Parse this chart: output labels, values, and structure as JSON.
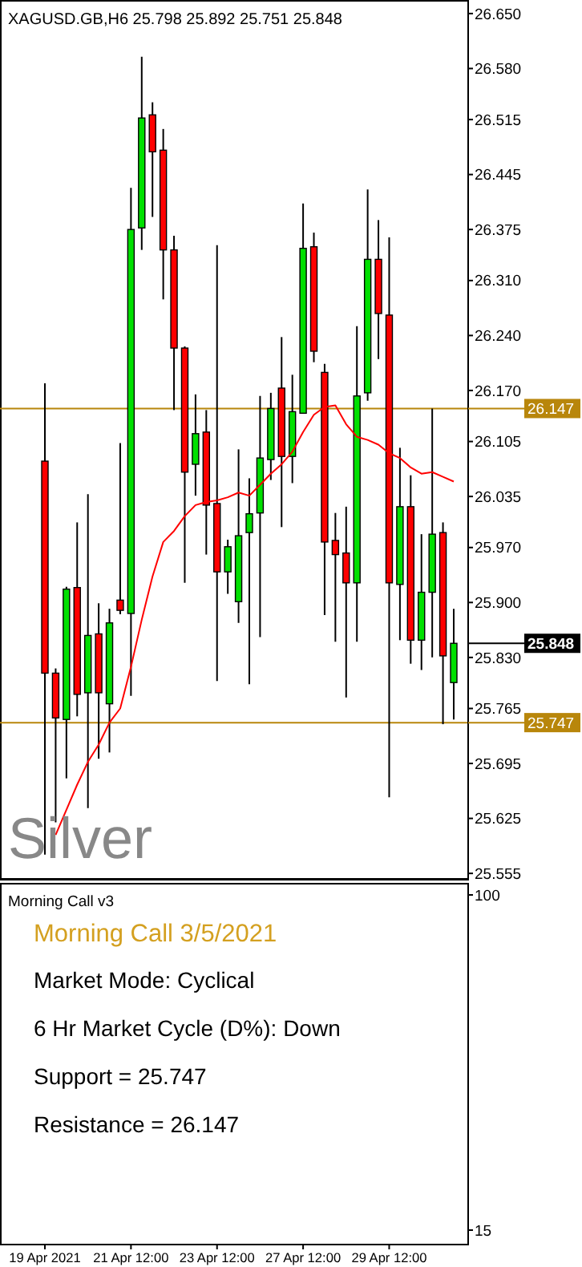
{
  "chart_data": [
    {
      "type": "candlestick",
      "title": "XAGUSD.GB,H6  25.798 25.892 25.751 25.848",
      "annotations": [
        "Silver",
        "25.848"
      ],
      "categories": [
        null,
        null,
        null,
        null,
        null,
        null,
        null,
        null,
        null,
        null,
        null,
        null,
        null,
        null,
        null,
        null,
        null,
        null,
        null,
        null,
        null,
        null,
        null,
        null,
        null,
        null,
        null,
        null,
        null,
        null,
        null,
        null,
        null,
        null,
        null,
        null,
        null,
        null,
        null
      ],
      "tick_labels": "y",
      "grid": false,
      "ylim": [
        25.548,
        26.655
      ],
      "yticks": [
        {
          "value": 26.65,
          "label": "26.650"
        },
        {
          "value": 26.58,
          "label": "26.580"
        },
        {
          "value": 26.515,
          "label": "26.515"
        },
        {
          "value": 26.445,
          "label": "26.445"
        },
        {
          "value": 26.375,
          "label": "26.375"
        },
        {
          "value": 26.31,
          "label": "26.310"
        },
        {
          "value": 26.24,
          "label": "26.240"
        },
        {
          "value": 26.17,
          "label": "26.170"
        },
        {
          "value": 26.105,
          "label": "26.105"
        },
        {
          "value": 26.035,
          "label": "26.035"
        },
        {
          "value": 25.97,
          "label": "25.970"
        },
        {
          "value": 25.9,
          "label": "25.900"
        },
        {
          "value": 25.83,
          "label": "25.830"
        },
        {
          "value": 25.765,
          "label": "25.765"
        },
        {
          "value": 25.695,
          "label": "25.695"
        },
        {
          "value": 25.625,
          "label": "25.625"
        },
        {
          "value": 25.555,
          "label": "25.555"
        }
      ],
      "ref_lines": [
        {
          "axis": "y",
          "value": 26.147,
          "label": "26.147",
          "color": "#b8860b"
        },
        {
          "axis": "y",
          "value": 25.747,
          "label": "25.747",
          "color": "#b8860b"
        }
      ],
      "ohlc": [
        [
          26.08,
          26.179,
          25.579,
          25.81
        ],
        [
          25.81,
          25.816,
          25.62,
          25.753
        ],
        [
          25.751,
          25.92,
          25.676,
          25.917
        ],
        [
          25.919,
          26.002,
          25.755,
          25.783
        ],
        [
          25.785,
          26.038,
          25.638,
          25.858
        ],
        [
          25.86,
          25.899,
          25.701,
          25.785
        ],
        [
          25.771,
          25.892,
          25.709,
          25.874
        ],
        [
          25.903,
          26.103,
          25.885,
          25.89
        ],
        [
          25.886,
          26.428,
          25.781,
          26.375
        ],
        [
          26.377,
          26.595,
          26.349,
          26.517
        ],
        [
          26.521,
          26.537,
          26.391,
          26.474
        ],
        [
          26.476,
          26.503,
          26.286,
          26.349
        ],
        [
          26.349,
          26.367,
          26.145,
          26.224
        ],
        [
          26.224,
          26.226,
          25.925,
          26.066
        ],
        [
          26.076,
          26.165,
          26.036,
          26.115
        ],
        [
          26.117,
          26.145,
          25.961,
          26.024
        ],
        [
          26.026,
          26.355,
          25.8,
          25.939
        ],
        [
          25.939,
          25.98,
          25.911,
          25.971
        ],
        [
          25.901,
          26.095,
          25.874,
          25.985
        ],
        [
          25.989,
          26.058,
          25.796,
          26.013
        ],
        [
          26.014,
          26.163,
          25.856,
          26.084
        ],
        [
          26.082,
          26.167,
          26.056,
          26.147
        ],
        [
          26.173,
          26.238,
          25.996,
          26.086
        ],
        [
          26.086,
          26.19,
          26.052,
          26.143
        ],
        [
          26.141,
          26.408,
          26.141,
          26.351
        ],
        [
          26.353,
          26.371,
          26.206,
          26.22
        ],
        [
          26.193,
          26.204,
          25.884,
          25.977
        ],
        [
          25.979,
          26.014,
          25.85,
          25.961
        ],
        [
          25.963,
          26.022,
          25.779,
          25.925
        ],
        [
          25.925,
          26.252,
          25.85,
          26.163
        ],
        [
          26.167,
          26.426,
          26.157,
          26.337
        ],
        [
          26.337,
          26.387,
          26.21,
          26.268
        ],
        [
          26.266,
          26.365,
          25.652,
          25.925
        ],
        [
          25.923,
          26.097,
          25.852,
          26.022
        ],
        [
          26.022,
          26.062,
          25.822,
          25.852
        ],
        [
          25.852,
          25.987,
          25.814,
          25.913
        ],
        [
          25.913,
          26.147,
          25.83,
          25.987
        ],
        [
          25.989,
          26.002,
          25.745,
          25.832
        ],
        [
          25.798,
          25.892,
          25.751,
          25.848
        ]
      ],
      "colors": [
        "#ff0000",
        "#ff0000",
        "#00e000",
        "#ff0000",
        "#00e000",
        "#ff0000",
        "#00e000",
        "#ff0000",
        "#00e000",
        "#00e000",
        "#ff0000",
        "#ff0000",
        "#ff0000",
        "#ff0000",
        "#00e000",
        "#ff0000",
        "#ff0000",
        "#00e000",
        "#00e000",
        "#00e000",
        "#00e000",
        "#00e000",
        "#ff0000",
        "#00e000",
        "#00e000",
        "#ff0000",
        "#ff0000",
        "#ff0000",
        "#ff0000",
        "#00e000",
        "#00e000",
        "#ff0000",
        "#ff0000",
        "#00e000",
        "#ff0000",
        "#00e000",
        "#00e000",
        "#ff0000",
        "#00e000"
      ],
      "series": [
        {
          "type": "line",
          "color": "#ff0000",
          "values": [
            null,
            25.604,
            25.636,
            25.668,
            25.697,
            25.719,
            25.747,
            25.765,
            25.818,
            25.878,
            25.933,
            25.977,
            25.991,
            26.01,
            26.024,
            26.028,
            26.03,
            26.034,
            26.04,
            26.036,
            26.05,
            26.064,
            26.076,
            26.092,
            26.117,
            26.139,
            26.149,
            26.151,
            26.127,
            26.111,
            26.107,
            26.101,
            26.09,
            26.084,
            26.072,
            26.064,
            26.066,
            26.06,
            26.054
          ]
        }
      ]
    },
    {
      "type": "other",
      "title": "Morning Call v3",
      "subtitle": "Morning Call 3/5/2021",
      "annotations": [
        "Market Mode: Cyclical",
        "6 Hr Market Cycle (D%): Down",
        "Support = 25.747",
        "Resistance = 26.147",
        "100",
        "15"
      ],
      "categories": [
        "19 Apr 2021",
        null,
        null,
        null,
        null,
        null,
        null,
        null,
        "21 Apr 12:00",
        null,
        null,
        null,
        null,
        null,
        null,
        null,
        "23 Apr 12:00",
        null,
        null,
        null,
        null,
        null,
        null,
        null,
        "27 Apr 12:00",
        null,
        null,
        null,
        null,
        null,
        null,
        null,
        "29 Apr 12:00",
        null,
        null,
        null,
        null,
        null,
        null
      ]
    }
  ]
}
